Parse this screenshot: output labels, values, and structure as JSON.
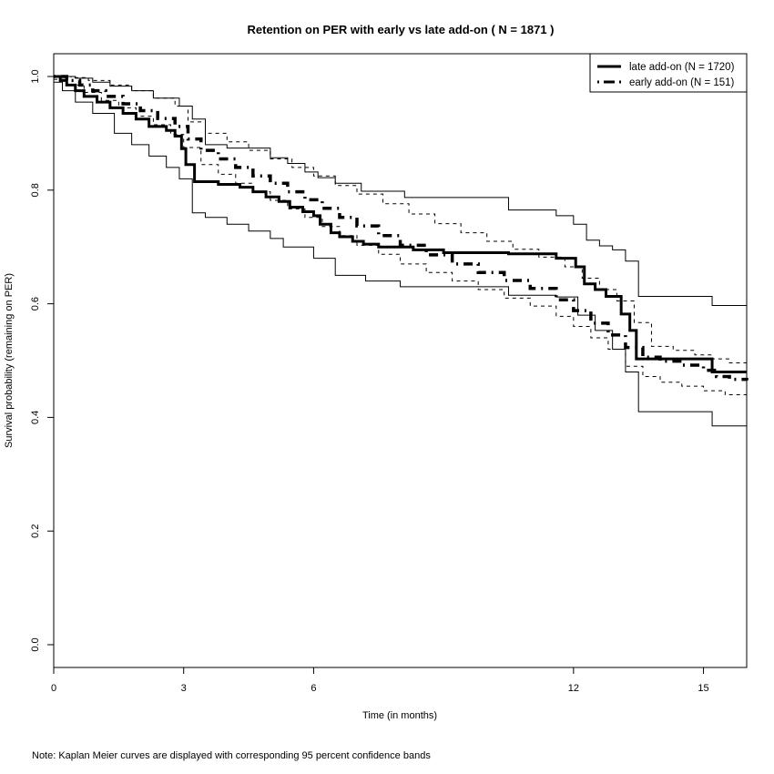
{
  "chart_data": {
    "type": "line",
    "subtype": "kaplan-meier step curves with 95% confidence bands",
    "title": "Retention on PER with early vs late add-on ( N = 1871 )",
    "xlabel": "Time (in months)",
    "ylabel": "Survival probability (remaining on PER)",
    "xlim": [
      0,
      16
    ],
    "ylim": [
      -0.04,
      1.04
    ],
    "xticks": [
      0,
      3,
      6,
      12,
      15
    ],
    "xtick_labels": [
      "0",
      "3",
      "6",
      "12",
      "15"
    ],
    "yticks": [
      0.0,
      0.2,
      0.4,
      0.6,
      0.8,
      1.0
    ],
    "ytick_labels": [
      "0.0",
      "0.2",
      "0.4",
      "0.6",
      "0.8",
      "1.0"
    ],
    "grid": false,
    "legend": {
      "position": "top-right",
      "entries": [
        {
          "label": "late add-on (N = 1720)",
          "style": "solid"
        },
        {
          "label": "early add-on (N = 151)",
          "style": "dotdash"
        }
      ]
    },
    "note": "Note: Kaplan Meier curves are displayed with corresponding 95 percent confidence bands",
    "series": [
      {
        "name": "late add-on (N = 1720)",
        "style": "solid",
        "estimate": {
          "x": [
            0,
            0.15,
            0.3,
            0.5,
            0.7,
            1.0,
            1.3,
            1.6,
            1.9,
            2.2,
            2.6,
            2.8,
            2.95,
            3.05,
            3.25,
            3.8,
            4.3,
            4.6,
            4.9,
            5.2,
            5.45,
            5.75,
            6.0,
            6.15,
            6.4,
            6.6,
            6.9,
            7.15,
            7.5,
            8.3,
            9.0,
            10.5,
            11.6,
            12.05,
            12.25,
            12.5,
            12.75,
            13.1,
            13.3,
            13.45,
            15.2
          ],
          "y": [
            1.0,
            0.993,
            0.985,
            0.975,
            0.965,
            0.955,
            0.945,
            0.935,
            0.925,
            0.912,
            0.905,
            0.895,
            0.873,
            0.845,
            0.815,
            0.81,
            0.805,
            0.797,
            0.788,
            0.78,
            0.77,
            0.762,
            0.755,
            0.74,
            0.725,
            0.718,
            0.71,
            0.705,
            0.7,
            0.695,
            0.69,
            0.688,
            0.68,
            0.665,
            0.635,
            0.625,
            0.613,
            0.582,
            0.553,
            0.503,
            0.48
          ]
        },
        "ci_upper": {
          "x": [
            0,
            0.5,
            0.9,
            1.3,
            1.8,
            2.3,
            2.9,
            3.2,
            3.5,
            4.0,
            5.0,
            5.4,
            5.8,
            6.1,
            6.5,
            7.1,
            8.1,
            10.5,
            11.6,
            12.0,
            12.3,
            12.6,
            12.9,
            13.2,
            13.5,
            15.2
          ],
          "y": [
            1.0,
            0.997,
            0.99,
            0.983,
            0.975,
            0.962,
            0.948,
            0.925,
            0.88,
            0.874,
            0.857,
            0.847,
            0.832,
            0.822,
            0.812,
            0.798,
            0.787,
            0.765,
            0.755,
            0.74,
            0.712,
            0.702,
            0.695,
            0.675,
            0.613,
            0.597
          ]
        },
        "ci_lower": {
          "x": [
            0,
            0.2,
            0.5,
            0.9,
            1.4,
            1.8,
            2.2,
            2.6,
            2.9,
            3.2,
            3.5,
            4.0,
            4.5,
            5.0,
            5.3,
            6.0,
            6.5,
            7.2,
            8.0,
            10.5,
            11.6,
            12.1,
            12.5,
            12.9,
            13.2,
            13.5,
            15.2
          ],
          "y": [
            0.99,
            0.975,
            0.955,
            0.935,
            0.9,
            0.88,
            0.86,
            0.84,
            0.82,
            0.76,
            0.752,
            0.74,
            0.728,
            0.715,
            0.7,
            0.68,
            0.65,
            0.64,
            0.63,
            0.615,
            0.612,
            0.58,
            0.553,
            0.52,
            0.48,
            0.41,
            0.385
          ]
        }
      },
      {
        "name": "early add-on (N = 151)",
        "style": "dotdash",
        "estimate": {
          "x": [
            0,
            0.3,
            0.6,
            0.9,
            1.2,
            1.6,
            2.0,
            2.4,
            2.8,
            3.1,
            3.4,
            3.8,
            4.2,
            4.6,
            5.0,
            5.4,
            5.8,
            6.2,
            6.6,
            7.0,
            7.5,
            8.0,
            8.6,
            9.2,
            9.8,
            10.4,
            11.0,
            11.6,
            12.0,
            12.4,
            12.8,
            13.2,
            13.6,
            14.0,
            14.5,
            15.0,
            15.3,
            15.6,
            16.0
          ],
          "y": [
            1.0,
            0.993,
            0.985,
            0.975,
            0.965,
            0.952,
            0.94,
            0.926,
            0.912,
            0.89,
            0.87,
            0.855,
            0.84,
            0.825,
            0.812,
            0.797,
            0.783,
            0.768,
            0.752,
            0.737,
            0.72,
            0.703,
            0.686,
            0.67,
            0.655,
            0.641,
            0.627,
            0.607,
            0.588,
            0.566,
            0.545,
            0.523,
            0.506,
            0.499,
            0.492,
            0.483,
            0.472,
            0.467,
            0.465
          ]
        },
        "ci_upper": {
          "x": [
            0,
            0.4,
            0.8,
            1.3,
            1.8,
            2.3,
            2.8,
            3.1,
            3.5,
            4.0,
            4.5,
            5.0,
            5.5,
            6.0,
            6.5,
            7.0,
            7.6,
            8.2,
            8.8,
            9.4,
            10.0,
            10.6,
            11.2,
            11.8,
            12.2,
            12.6,
            13.0,
            13.4,
            13.8,
            14.3,
            14.8,
            15.2,
            15.6,
            16.0
          ],
          "y": [
            1.0,
            0.998,
            0.993,
            0.985,
            0.975,
            0.962,
            0.948,
            0.92,
            0.9,
            0.885,
            0.87,
            0.855,
            0.84,
            0.825,
            0.808,
            0.793,
            0.776,
            0.758,
            0.741,
            0.725,
            0.71,
            0.696,
            0.682,
            0.665,
            0.645,
            0.625,
            0.605,
            0.567,
            0.525,
            0.518,
            0.51,
            0.503,
            0.496,
            0.49
          ]
        },
        "ci_lower": {
          "x": [
            0,
            0.3,
            0.7,
            1.1,
            1.5,
            1.9,
            2.3,
            2.7,
            3.0,
            3.4,
            3.8,
            4.2,
            4.6,
            5.0,
            5.4,
            5.8,
            6.2,
            6.6,
            7.0,
            7.5,
            8.0,
            8.6,
            9.2,
            9.8,
            10.4,
            11.0,
            11.6,
            12.0,
            12.4,
            12.8,
            13.2,
            13.6,
            14.0,
            14.5,
            15.0,
            15.5,
            16.0
          ],
          "y": [
            0.995,
            0.985,
            0.972,
            0.958,
            0.945,
            0.93,
            0.915,
            0.898,
            0.875,
            0.845,
            0.828,
            0.812,
            0.797,
            0.782,
            0.767,
            0.752,
            0.736,
            0.72,
            0.703,
            0.687,
            0.67,
            0.655,
            0.64,
            0.625,
            0.61,
            0.596,
            0.578,
            0.56,
            0.54,
            0.52,
            0.49,
            0.472,
            0.462,
            0.455,
            0.447,
            0.44,
            0.437
          ]
        }
      }
    ]
  }
}
